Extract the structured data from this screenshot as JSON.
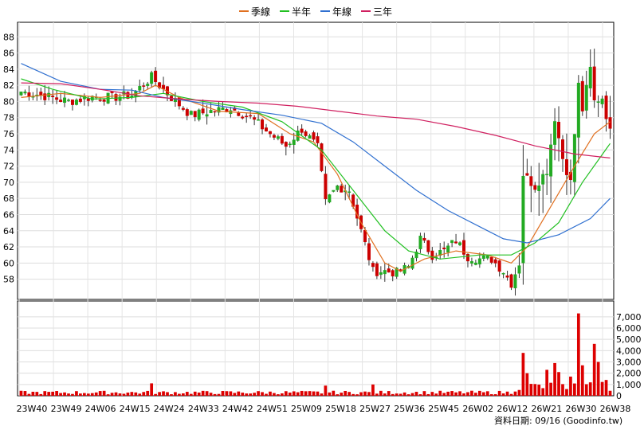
{
  "legend": {
    "items": [
      {
        "label": "季線",
        "color": "#e07020"
      },
      {
        "label": "半年",
        "color": "#22c022"
      },
      {
        "label": "年線",
        "color": "#3070d0"
      },
      {
        "label": "三年",
        "color": "#d02060"
      }
    ]
  },
  "source_text": "資料日期: 09/16  (Goodinfo.tw)",
  "colors": {
    "up": "#22aa22",
    "down": "#cc0000",
    "volume": "#dd0000"
  },
  "chart_data": {
    "type": "candlestick",
    "price_axis": {
      "ticks": [
        "58",
        "60",
        "62",
        "64",
        "66",
        "68",
        "70",
        "72",
        "74",
        "76",
        "78",
        "80",
        "82",
        "84",
        "86",
        "88"
      ],
      "tick_values": [
        58,
        60,
        62,
        64,
        66,
        68,
        70,
        72,
        74,
        76,
        78,
        80,
        82,
        84,
        86,
        88
      ],
      "range": [
        55.5,
        89.8
      ]
    },
    "volume_axis": {
      "ticks": [
        "0",
        "1,000",
        "2,000",
        "3,000",
        "4,000",
        "5,000",
        "6,000",
        "7,000"
      ],
      "tick_values": [
        0,
        1000,
        2000,
        3000,
        4000,
        5000,
        6000,
        7000
      ],
      "range": [
        0,
        8400
      ]
    },
    "x_labels": [
      "23W40",
      "23W49",
      "24W06",
      "24W15",
      "24W24",
      "24W33",
      "24W42",
      "24W51",
      "25W09",
      "25W18",
      "25W27",
      "25W36",
      "25W45",
      "26W02",
      "26W12",
      "26W21",
      "26W30",
      "26W38"
    ],
    "anchors": [
      {
        "i": 0,
        "c": 81.2
      },
      {
        "i": 5,
        "c": 80.8
      },
      {
        "i": 12,
        "c": 80.0
      },
      {
        "i": 18,
        "c": 80.6
      },
      {
        "i": 23,
        "c": 80.5
      },
      {
        "i": 28,
        "c": 80.8
      },
      {
        "i": 33,
        "c": 83.0
      },
      {
        "i": 38,
        "c": 80.5
      },
      {
        "i": 43,
        "c": 78.3
      },
      {
        "i": 48,
        "c": 78.8
      },
      {
        "i": 53,
        "c": 79.2
      },
      {
        "i": 58,
        "c": 78.0
      },
      {
        "i": 63,
        "c": 76.0
      },
      {
        "i": 67,
        "c": 74.5
      },
      {
        "i": 71,
        "c": 76.6
      },
      {
        "i": 75,
        "c": 74.3
      },
      {
        "i": 77,
        "c": 67.5
      },
      {
        "i": 80,
        "c": 69.5
      },
      {
        "i": 83,
        "c": 69.0
      },
      {
        "i": 86,
        "c": 64.0
      },
      {
        "i": 89,
        "c": 59.0
      },
      {
        "i": 92,
        "c": 59.0
      },
      {
        "i": 95,
        "c": 58.8
      },
      {
        "i": 98,
        "c": 59.5
      },
      {
        "i": 101,
        "c": 63.0
      },
      {
        "i": 104,
        "c": 61.0
      },
      {
        "i": 107,
        "c": 61.5
      },
      {
        "i": 110,
        "c": 62.8
      },
      {
        "i": 113,
        "c": 60.8
      },
      {
        "i": 116,
        "c": 60.5
      },
      {
        "i": 119,
        "c": 60.5
      },
      {
        "i": 122,
        "c": 59.0
      },
      {
        "i": 124,
        "c": 57.5
      },
      {
        "i": 126,
        "c": 60.0
      },
      {
        "i": 127,
        "c": 71.0
      },
      {
        "i": 130,
        "c": 69.5
      },
      {
        "i": 133,
        "c": 71.5
      },
      {
        "i": 135,
        "c": 78.0
      },
      {
        "i": 137,
        "c": 73.0
      },
      {
        "i": 139,
        "c": 70.0
      },
      {
        "i": 141,
        "c": 82.0
      },
      {
        "i": 142,
        "c": 79.0
      },
      {
        "i": 144,
        "c": 84.0
      },
      {
        "i": 145,
        "c": 80.0
      },
      {
        "i": 147,
        "c": 80.5
      },
      {
        "i": 149,
        "c": 76.2
      }
    ],
    "volume_peaks": [
      {
        "i": 33,
        "v": 1100
      },
      {
        "i": 77,
        "v": 900
      },
      {
        "i": 89,
        "v": 1000
      },
      {
        "i": 127,
        "v": 3800
      },
      {
        "i": 128,
        "v": 2000
      },
      {
        "i": 133,
        "v": 2300
      },
      {
        "i": 135,
        "v": 2900
      },
      {
        "i": 136,
        "v": 2100
      },
      {
        "i": 139,
        "v": 1700
      },
      {
        "i": 141,
        "v": 7300
      },
      {
        "i": 142,
        "v": 2700
      },
      {
        "i": 145,
        "v": 4600
      },
      {
        "i": 146,
        "v": 3000
      },
      {
        "i": 148,
        "v": 1400
      }
    ],
    "moving_averages": [
      {
        "name": "季線",
        "color": "#e07020",
        "points": [
          [
            0,
            80.5
          ],
          [
            10,
            81.0
          ],
          [
            20,
            80.5
          ],
          [
            30,
            81.0
          ],
          [
            34,
            82.0
          ],
          [
            40,
            80.5
          ],
          [
            50,
            78.8
          ],
          [
            60,
            78.5
          ],
          [
            68,
            76.0
          ],
          [
            74,
            75.0
          ],
          [
            80,
            71.0
          ],
          [
            86,
            65.0
          ],
          [
            92,
            60.0
          ],
          [
            96,
            59.0
          ],
          [
            102,
            60.5
          ],
          [
            110,
            61.5
          ],
          [
            118,
            61.0
          ],
          [
            124,
            60.0
          ],
          [
            128,
            62.0
          ],
          [
            134,
            67.0
          ],
          [
            140,
            72.0
          ],
          [
            145,
            76.0
          ],
          [
            149,
            77.5
          ]
        ]
      },
      {
        "name": "半年",
        "color": "#22c022",
        "points": [
          [
            0,
            82.8
          ],
          [
            8,
            81.5
          ],
          [
            18,
            80.3
          ],
          [
            28,
            80.5
          ],
          [
            36,
            81.0
          ],
          [
            46,
            80.0
          ],
          [
            56,
            79.3
          ],
          [
            66,
            77.5
          ],
          [
            76,
            74.0
          ],
          [
            84,
            69.0
          ],
          [
            92,
            64.0
          ],
          [
            98,
            61.5
          ],
          [
            106,
            60.5
          ],
          [
            116,
            61.0
          ],
          [
            124,
            61.0
          ],
          [
            130,
            62.5
          ],
          [
            136,
            65.0
          ],
          [
            142,
            70.0
          ],
          [
            149,
            74.8
          ]
        ]
      },
      {
        "name": "年線",
        "color": "#3070d0",
        "points": [
          [
            0,
            84.7
          ],
          [
            10,
            82.5
          ],
          [
            20,
            81.5
          ],
          [
            28,
            81.4
          ],
          [
            36,
            80.5
          ],
          [
            46,
            79.8
          ],
          [
            56,
            79.0
          ],
          [
            66,
            78.3
          ],
          [
            76,
            77.3
          ],
          [
            84,
            75.0
          ],
          [
            92,
            72.0
          ],
          [
            100,
            69.0
          ],
          [
            108,
            66.5
          ],
          [
            116,
            64.5
          ],
          [
            122,
            63.0
          ],
          [
            128,
            62.5
          ],
          [
            136,
            63.5
          ],
          [
            144,
            65.5
          ],
          [
            149,
            68.0
          ]
        ]
      },
      {
        "name": "三年",
        "color": "#d02060",
        "points": [
          [
            0,
            82.3
          ],
          [
            10,
            82.2
          ],
          [
            20,
            81.5
          ],
          [
            30,
            80.7
          ],
          [
            40,
            80.3
          ],
          [
            50,
            80.0
          ],
          [
            60,
            79.8
          ],
          [
            70,
            79.4
          ],
          [
            80,
            78.8
          ],
          [
            90,
            78.2
          ],
          [
            100,
            77.8
          ],
          [
            110,
            76.9
          ],
          [
            120,
            75.8
          ],
          [
            130,
            74.5
          ],
          [
            140,
            73.5
          ],
          [
            149,
            73.0
          ]
        ]
      }
    ]
  }
}
